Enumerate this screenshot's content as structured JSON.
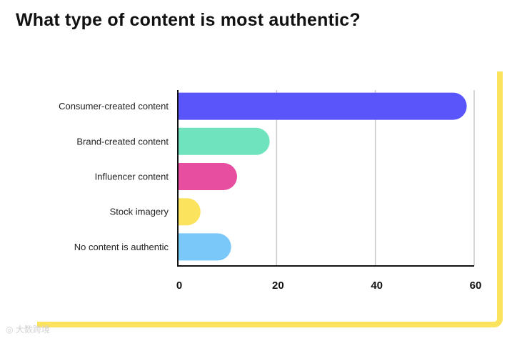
{
  "title": "What type of content is most authentic?",
  "watermark": "大数跨境",
  "chart_data": {
    "type": "bar",
    "orientation": "horizontal",
    "categories": [
      "Consumer-created content",
      "Brand-created content",
      "Influencer content",
      "Stock imagery",
      "No content is authentic"
    ],
    "values": [
      58.5,
      18.6,
      12,
      4.6,
      10.8
    ],
    "bar_colors": [
      "#5a55fb",
      "#6ee3bd",
      "#e84ea0",
      "#fbe35e",
      "#7ac7fa"
    ],
    "xlim": [
      0,
      60
    ],
    "xticks": [
      "0",
      "20",
      "40",
      "60"
    ],
    "grid": true,
    "legend": "none"
  },
  "colors": {
    "accent_frame": "#fbe35e",
    "gridline": "#c8c8c8",
    "axis": "#111111",
    "text": "#222222"
  }
}
